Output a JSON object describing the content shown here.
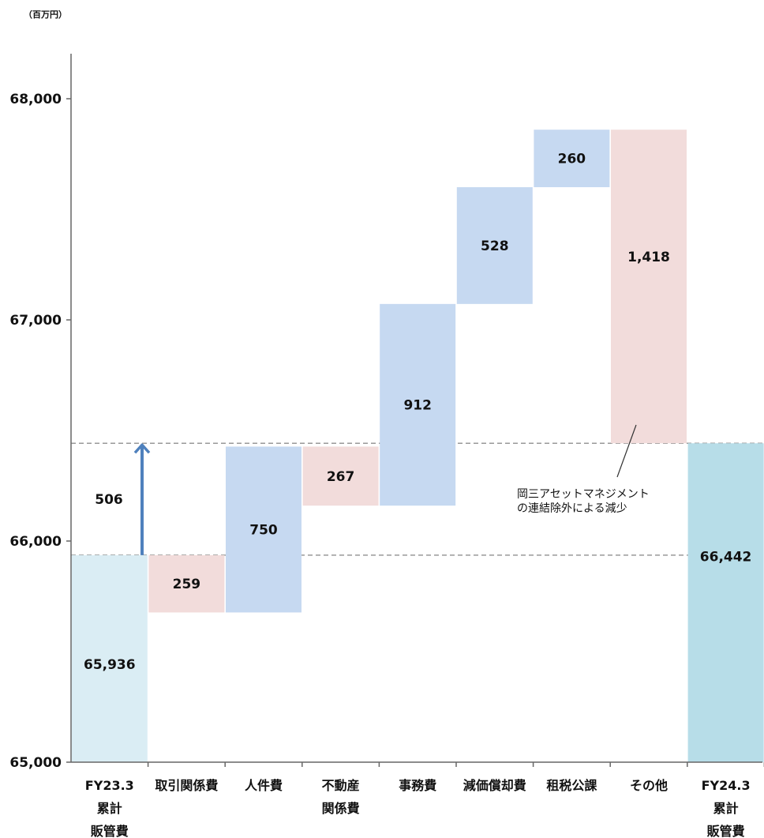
{
  "chart_data": {
    "type": "bar",
    "subtype": "waterfall",
    "unit_label": "（百万円）",
    "y_ticks": [
      65000,
      66000,
      67000,
      68000
    ],
    "y_tick_labels": [
      "65,000",
      "66,000",
      "67,000",
      "68,000"
    ],
    "ylim": [
      65000,
      68200
    ],
    "grid": false,
    "categories": [
      [
        "FY23.3",
        "累計",
        "販管費"
      ],
      [
        "取引関係費"
      ],
      [
        "人件費"
      ],
      [
        "不動産",
        "関係費"
      ],
      [
        "事務費"
      ],
      [
        "減価償却費"
      ],
      [
        "租税公課"
      ],
      [
        "その他"
      ],
      [
        "FY24.3",
        "累計",
        "販管費"
      ]
    ],
    "bars": [
      {
        "kind": "total",
        "start": 65000,
        "end": 65936,
        "label": "65,936",
        "color": "#daedf4"
      },
      {
        "kind": "decrease",
        "start": 65936,
        "end": 65677,
        "label": "259",
        "color": "#f2dcdb"
      },
      {
        "kind": "increase",
        "start": 65677,
        "end": 66427,
        "label": "750",
        "color": "#c6d9f1"
      },
      {
        "kind": "decrease",
        "start": 66427,
        "end": 66160,
        "label": "267",
        "color": "#f2dcdb"
      },
      {
        "kind": "increase",
        "start": 66160,
        "end": 67072,
        "label": "912",
        "color": "#c6d9f1"
      },
      {
        "kind": "increase",
        "start": 67072,
        "end": 67600,
        "label": "528",
        "color": "#c6d9f1"
      },
      {
        "kind": "increase",
        "start": 67600,
        "end": 67860,
        "label": "260",
        "color": "#c6d9f1"
      },
      {
        "kind": "decrease",
        "start": 67860,
        "end": 66442,
        "label": "1,418",
        "color": "#f2dcdb"
      },
      {
        "kind": "total",
        "start": 65000,
        "end": 66442,
        "label": "66,442",
        "color": "#b7dde8"
      }
    ],
    "change": {
      "from": 65936,
      "to": 66442,
      "label": "506",
      "color": "#4f81bd"
    },
    "reference_lines": [
      65936,
      66442
    ],
    "annotation": {
      "lines": [
        "岡三アセットマネジメント",
        "の連結除外による減少"
      ],
      "points_to_category": 7
    }
  }
}
